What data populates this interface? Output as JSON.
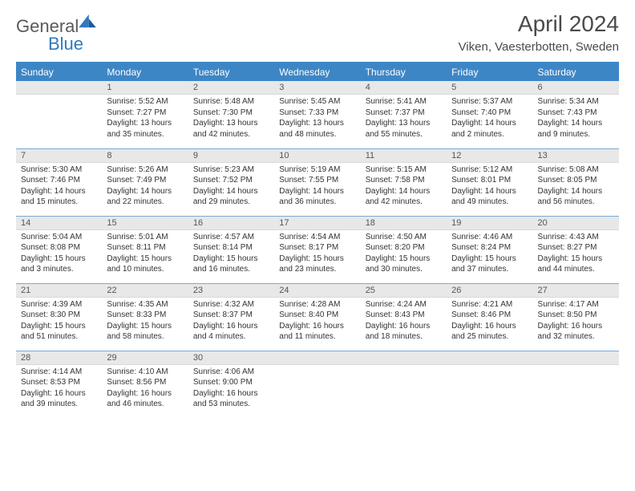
{
  "brand": {
    "part1": "General",
    "part2": "Blue",
    "color_text": "#5a5a5a",
    "color_accent": "#2f7ac0"
  },
  "title": "April 2024",
  "location": "Viken, Vaesterbotten, Sweden",
  "colors": {
    "header_bg": "#3d86c6",
    "header_text": "#ffffff",
    "daynum_bg": "#e8e8e8",
    "row_border": "#7aa9d4",
    "body_text": "#333333"
  },
  "weekdays": [
    "Sunday",
    "Monday",
    "Tuesday",
    "Wednesday",
    "Thursday",
    "Friday",
    "Saturday"
  ],
  "weeks": [
    [
      {
        "n": "",
        "sr": "",
        "ss": "",
        "dl": ""
      },
      {
        "n": "1",
        "sr": "Sunrise: 5:52 AM",
        "ss": "Sunset: 7:27 PM",
        "dl": "Daylight: 13 hours and 35 minutes."
      },
      {
        "n": "2",
        "sr": "Sunrise: 5:48 AM",
        "ss": "Sunset: 7:30 PM",
        "dl": "Daylight: 13 hours and 42 minutes."
      },
      {
        "n": "3",
        "sr": "Sunrise: 5:45 AM",
        "ss": "Sunset: 7:33 PM",
        "dl": "Daylight: 13 hours and 48 minutes."
      },
      {
        "n": "4",
        "sr": "Sunrise: 5:41 AM",
        "ss": "Sunset: 7:37 PM",
        "dl": "Daylight: 13 hours and 55 minutes."
      },
      {
        "n": "5",
        "sr": "Sunrise: 5:37 AM",
        "ss": "Sunset: 7:40 PM",
        "dl": "Daylight: 14 hours and 2 minutes."
      },
      {
        "n": "6",
        "sr": "Sunrise: 5:34 AM",
        "ss": "Sunset: 7:43 PM",
        "dl": "Daylight: 14 hours and 9 minutes."
      }
    ],
    [
      {
        "n": "7",
        "sr": "Sunrise: 5:30 AM",
        "ss": "Sunset: 7:46 PM",
        "dl": "Daylight: 14 hours and 15 minutes."
      },
      {
        "n": "8",
        "sr": "Sunrise: 5:26 AM",
        "ss": "Sunset: 7:49 PM",
        "dl": "Daylight: 14 hours and 22 minutes."
      },
      {
        "n": "9",
        "sr": "Sunrise: 5:23 AM",
        "ss": "Sunset: 7:52 PM",
        "dl": "Daylight: 14 hours and 29 minutes."
      },
      {
        "n": "10",
        "sr": "Sunrise: 5:19 AM",
        "ss": "Sunset: 7:55 PM",
        "dl": "Daylight: 14 hours and 36 minutes."
      },
      {
        "n": "11",
        "sr": "Sunrise: 5:15 AM",
        "ss": "Sunset: 7:58 PM",
        "dl": "Daylight: 14 hours and 42 minutes."
      },
      {
        "n": "12",
        "sr": "Sunrise: 5:12 AM",
        "ss": "Sunset: 8:01 PM",
        "dl": "Daylight: 14 hours and 49 minutes."
      },
      {
        "n": "13",
        "sr": "Sunrise: 5:08 AM",
        "ss": "Sunset: 8:05 PM",
        "dl": "Daylight: 14 hours and 56 minutes."
      }
    ],
    [
      {
        "n": "14",
        "sr": "Sunrise: 5:04 AM",
        "ss": "Sunset: 8:08 PM",
        "dl": "Daylight: 15 hours and 3 minutes."
      },
      {
        "n": "15",
        "sr": "Sunrise: 5:01 AM",
        "ss": "Sunset: 8:11 PM",
        "dl": "Daylight: 15 hours and 10 minutes."
      },
      {
        "n": "16",
        "sr": "Sunrise: 4:57 AM",
        "ss": "Sunset: 8:14 PM",
        "dl": "Daylight: 15 hours and 16 minutes."
      },
      {
        "n": "17",
        "sr": "Sunrise: 4:54 AM",
        "ss": "Sunset: 8:17 PM",
        "dl": "Daylight: 15 hours and 23 minutes."
      },
      {
        "n": "18",
        "sr": "Sunrise: 4:50 AM",
        "ss": "Sunset: 8:20 PM",
        "dl": "Daylight: 15 hours and 30 minutes."
      },
      {
        "n": "19",
        "sr": "Sunrise: 4:46 AM",
        "ss": "Sunset: 8:24 PM",
        "dl": "Daylight: 15 hours and 37 minutes."
      },
      {
        "n": "20",
        "sr": "Sunrise: 4:43 AM",
        "ss": "Sunset: 8:27 PM",
        "dl": "Daylight: 15 hours and 44 minutes."
      }
    ],
    [
      {
        "n": "21",
        "sr": "Sunrise: 4:39 AM",
        "ss": "Sunset: 8:30 PM",
        "dl": "Daylight: 15 hours and 51 minutes."
      },
      {
        "n": "22",
        "sr": "Sunrise: 4:35 AM",
        "ss": "Sunset: 8:33 PM",
        "dl": "Daylight: 15 hours and 58 minutes."
      },
      {
        "n": "23",
        "sr": "Sunrise: 4:32 AM",
        "ss": "Sunset: 8:37 PM",
        "dl": "Daylight: 16 hours and 4 minutes."
      },
      {
        "n": "24",
        "sr": "Sunrise: 4:28 AM",
        "ss": "Sunset: 8:40 PM",
        "dl": "Daylight: 16 hours and 11 minutes."
      },
      {
        "n": "25",
        "sr": "Sunrise: 4:24 AM",
        "ss": "Sunset: 8:43 PM",
        "dl": "Daylight: 16 hours and 18 minutes."
      },
      {
        "n": "26",
        "sr": "Sunrise: 4:21 AM",
        "ss": "Sunset: 8:46 PM",
        "dl": "Daylight: 16 hours and 25 minutes."
      },
      {
        "n": "27",
        "sr": "Sunrise: 4:17 AM",
        "ss": "Sunset: 8:50 PM",
        "dl": "Daylight: 16 hours and 32 minutes."
      }
    ],
    [
      {
        "n": "28",
        "sr": "Sunrise: 4:14 AM",
        "ss": "Sunset: 8:53 PM",
        "dl": "Daylight: 16 hours and 39 minutes."
      },
      {
        "n": "29",
        "sr": "Sunrise: 4:10 AM",
        "ss": "Sunset: 8:56 PM",
        "dl": "Daylight: 16 hours and 46 minutes."
      },
      {
        "n": "30",
        "sr": "Sunrise: 4:06 AM",
        "ss": "Sunset: 9:00 PM",
        "dl": "Daylight: 16 hours and 53 minutes."
      },
      {
        "n": "",
        "sr": "",
        "ss": "",
        "dl": ""
      },
      {
        "n": "",
        "sr": "",
        "ss": "",
        "dl": ""
      },
      {
        "n": "",
        "sr": "",
        "ss": "",
        "dl": ""
      },
      {
        "n": "",
        "sr": "",
        "ss": "",
        "dl": ""
      }
    ]
  ]
}
